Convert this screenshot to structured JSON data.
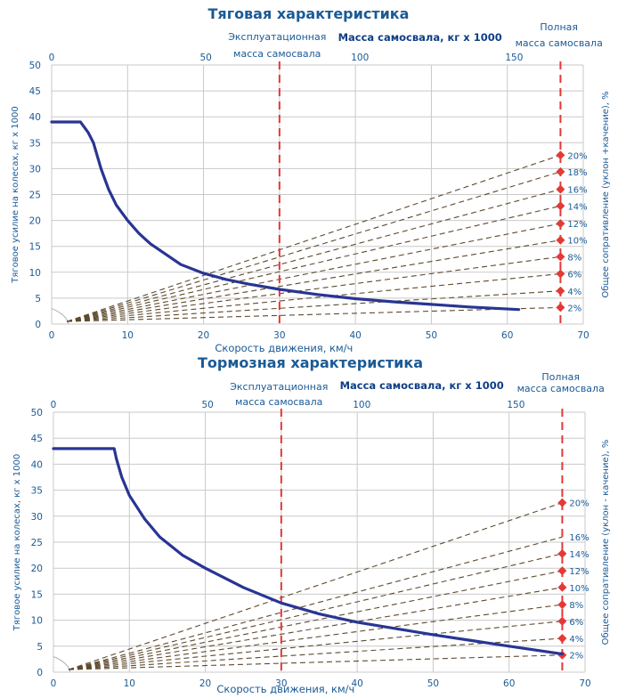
{
  "chart_data": [
    {
      "type": "line",
      "title": "Тяговая характеристика",
      "xlabel": "Скорость движения, км/ч",
      "ylabel": "Тяговое усилие на колесах, кг x 1000",
      "y2label": "Общее сопративление (уклон +качение), %",
      "top_axis_label": "Масса самосвала, кг x 1000",
      "operating_mass_label": [
        "Эксплуатационная",
        "масса самосвала"
      ],
      "full_mass_label": [
        "Полная",
        "масса самосвала"
      ],
      "xlim": [
        0,
        70
      ],
      "ylim": [
        0,
        50
      ],
      "x_ticks": [
        0,
        10,
        20,
        30,
        40,
        50,
        60,
        70
      ],
      "y_ticks": [
        0,
        5,
        10,
        15,
        20,
        25,
        30,
        35,
        40,
        45,
        50
      ],
      "top_ticks": [
        {
          "label": "0",
          "at": 0
        },
        {
          "label": "50",
          "at": 20.3
        },
        {
          "label": "100",
          "at": 40.6
        },
        {
          "label": "150",
          "at": 60.9
        }
      ],
      "operating_mass_x": 30,
      "full_mass_x": 67,
      "grid": true,
      "series": [
        {
          "color": "#283593",
          "x": [
            0,
            3.8,
            4.8,
            5.5,
            6.5,
            7.5,
            8.5,
            10,
            11.5,
            13,
            15,
            17,
            20,
            23,
            26,
            30,
            35,
            40,
            45,
            50,
            55,
            61.5
          ],
          "y": [
            39,
            39,
            37,
            35,
            30,
            26,
            23,
            20,
            17.5,
            15.5,
            13.5,
            11.5,
            9.8,
            8.6,
            7.7,
            6.7,
            5.7,
            4.9,
            4.3,
            3.8,
            3.3,
            2.8
          ]
        }
      ],
      "resistance_lines": {
        "origin": [
          2,
          0.5
        ],
        "end_x": 67,
        "percents": [
          "2%",
          "4%",
          "6%",
          "8%",
          "10%",
          "12%",
          "14%",
          "16%",
          "18%",
          "20%"
        ],
        "end_y": [
          3.2,
          6.4,
          9.7,
          13,
          16.2,
          19.4,
          22.8,
          26,
          29.4,
          32.6
        ]
      }
    },
    {
      "type": "line",
      "title": "Тормозная характеристика",
      "xlabel": "Скорость движения, км/ч",
      "ylabel": "Тяговое усилие на колесах, кг x 1000",
      "y2label": "Общее сопративление (уклон - качение), %",
      "top_axis_label": "Масса самосвала, кг x 1000",
      "operating_mass_label": [
        "Эксплуатационная",
        "масса самосвала"
      ],
      "full_mass_label": [
        "Полная",
        "масса самосвала"
      ],
      "xlim": [
        0,
        70
      ],
      "ylim": [
        0,
        50
      ],
      "x_ticks": [
        0,
        10,
        20,
        30,
        40,
        50,
        60,
        70
      ],
      "y_ticks": [
        0,
        5,
        10,
        15,
        20,
        25,
        30,
        35,
        40,
        45,
        50
      ],
      "top_ticks": [
        {
          "label": "0",
          "at": 0
        },
        {
          "label": "50",
          "at": 20.3
        },
        {
          "label": "100",
          "at": 40.6
        },
        {
          "label": "150",
          "at": 60.9
        }
      ],
      "operating_mass_x": 30,
      "full_mass_x": 67,
      "grid": true,
      "series": [
        {
          "color": "#283593",
          "x": [
            0,
            8,
            8.3,
            9,
            10,
            12,
            14,
            17,
            20,
            25,
            30,
            35,
            40,
            45,
            50,
            55,
            60,
            67
          ],
          "y": [
            43,
            43,
            41,
            37.5,
            34,
            29.5,
            26,
            22.5,
            20,
            16.3,
            13.3,
            11.2,
            9.6,
            8.4,
            7.2,
            6.1,
            5,
            3.5
          ]
        }
      ],
      "resistance_lines": {
        "origin": [
          2,
          0.5
        ],
        "end_x": 67,
        "percents": [
          "2%",
          "4%",
          "6%",
          "8%",
          "10%",
          "12%",
          "14%",
          "16%",
          "20%"
        ],
        "end_y": [
          3.3,
          6.5,
          9.8,
          13,
          16.3,
          19.5,
          22.8,
          26,
          32.6
        ],
        "no_marker": [
          "16%"
        ]
      }
    }
  ]
}
